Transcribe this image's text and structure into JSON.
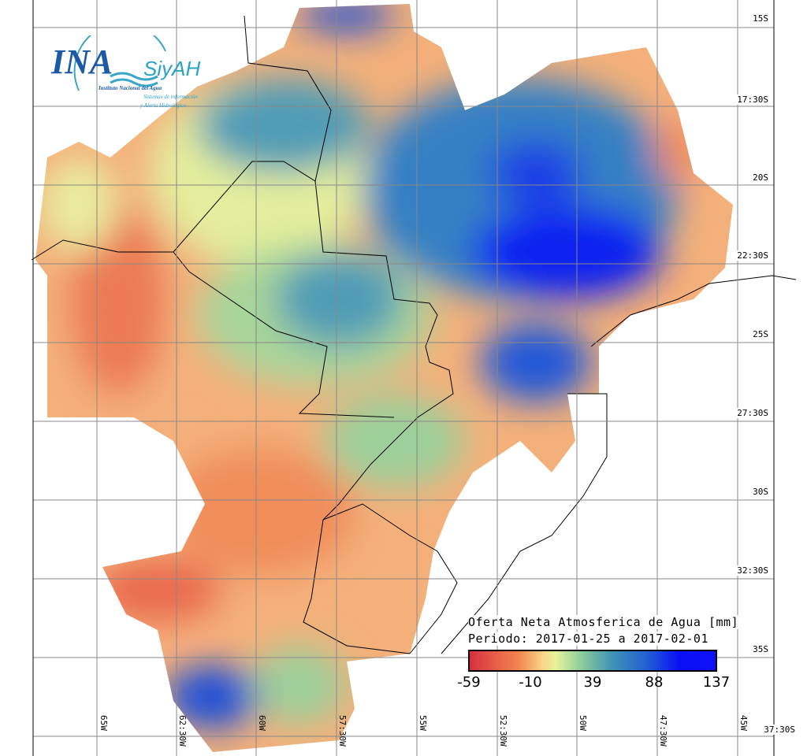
{
  "logo": {
    "main": "INA",
    "brand": "SiyAH",
    "institute": "Instituto Nacional del Agua",
    "subtitle_1": "Sistemas de información",
    "subtitle_2": "y Alerta Hidrológico"
  },
  "legend": {
    "title": "Oferta Neta Atmosferica de Agua [mm]",
    "period": "Periodo: 2017-01-25 a 2017-02-01",
    "ticks": [
      "-59",
      "-10",
      "39",
      "88",
      "137"
    ],
    "colors": [
      "#d7303f",
      "#f4874f",
      "#e6f29a",
      "#3f93b4",
      "#1010f8"
    ]
  },
  "lat_labels": [
    "15S",
    "17:30S",
    "20S",
    "22:30S",
    "25S",
    "27:30S",
    "30S",
    "32:30S",
    "35S",
    "37:30S"
  ],
  "lon_labels": [
    "65W",
    "62:30W",
    "60W",
    "57:30W",
    "55W",
    "52:30W",
    "50W",
    "47:30W",
    "45W"
  ]
}
